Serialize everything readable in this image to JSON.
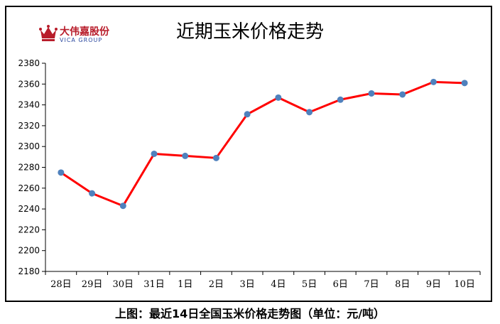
{
  "logo": {
    "name_cn": "大伟嘉股份",
    "name_en": "VICA GROUP"
  },
  "chart_data": {
    "type": "line",
    "title": "近期玉米价格走势",
    "categories": [
      "28日",
      "29日",
      "30日",
      "31日",
      "1日",
      "2日",
      "3日",
      "4日",
      "5日",
      "6日",
      "7日",
      "8日",
      "9日",
      "10日"
    ],
    "series": [
      {
        "values": [
          2275,
          2255,
          2243,
          2293,
          2291,
          2289,
          2331,
          2347,
          2333,
          2345,
          2351,
          2350,
          2362,
          2361
        ]
      }
    ],
    "ylim": [
      2180,
      2380
    ],
    "yticks": [
      2180,
      2200,
      2220,
      2240,
      2260,
      2280,
      2300,
      2320,
      2340,
      2360,
      2380
    ],
    "grid": false,
    "line_color": "#ff0000",
    "marker_color": "#4f81bd"
  },
  "caption": "上图：最近14日全国玉米价格走势图（单位：元/吨）"
}
